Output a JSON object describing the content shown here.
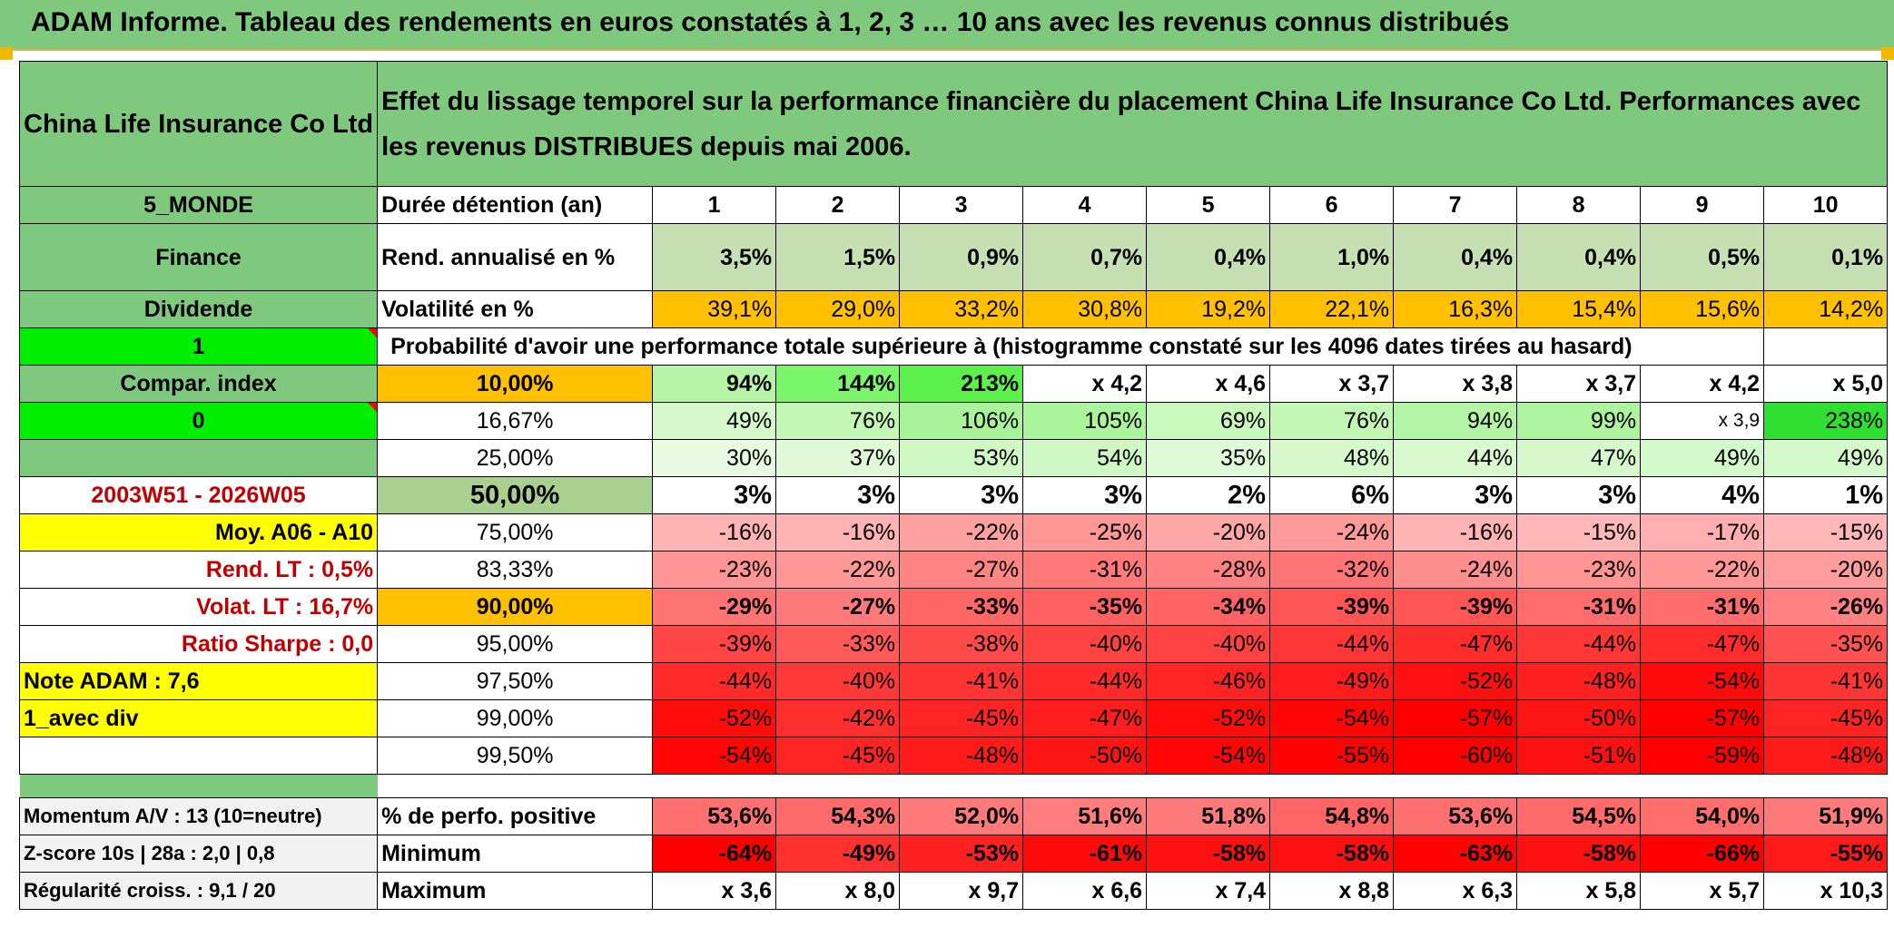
{
  "banner": "ADAM Informe. Tableau des rendements en euros constatés à 1, 2, 3 … 10 ans avec les revenus connus distribués",
  "header": {
    "fund": "China Life Insurance Co Ltd",
    "description": "Effet du lissage temporel sur la performance financière du placement China Life Insurance Co Ltd. Performances avec les revenus DISTRIBUES depuis mai 2006."
  },
  "left": {
    "zone": "5_MONDE",
    "sector": "Finance",
    "type": "Dividende",
    "flag1": "1",
    "compar": "Compar. index",
    "flag0": "0",
    "period": "2003W51 - 2026W05",
    "moy": "Moy. A06 - A10",
    "rend_lt": "Rend. LT :   0,5%",
    "volat_lt": "Volat. LT :   16,7%",
    "sharpe": "Ratio Sharpe :    0,0",
    "note": "Note ADAM : 7,6",
    "avec_div": "1_avec div",
    "momentum": "Momentum A/V : 13 (10=neutre)",
    "zscore": "Z-score 10s | 28a : 2,0 | 0,8",
    "regularite": "Régularité croiss. : 9,1 / 20"
  },
  "labels": {
    "duree": "Durée détention (an)",
    "rend": "Rend. annualisé en %",
    "volat": "Volatilité en %",
    "proba": "Probabilité d'avoir une performance totale supérieure à (histogramme constaté sur les 4096 dates tirées au hasard)",
    "perfo_pos": "% de perfo. positive",
    "minimum": "Minimum",
    "maximum": "Maximum"
  },
  "years": [
    "1",
    "2",
    "3",
    "4",
    "5",
    "6",
    "7",
    "8",
    "9",
    "10"
  ],
  "rend": [
    "3,5%",
    "1,5%",
    "0,9%",
    "0,7%",
    "0,4%",
    "1,0%",
    "0,4%",
    "0,4%",
    "0,5%",
    "0,1%"
  ],
  "volat": [
    "39,1%",
    "29,0%",
    "33,2%",
    "30,8%",
    "19,2%",
    "22,1%",
    "16,3%",
    "15,4%",
    "15,6%",
    "14,2%"
  ],
  "quantiles": [
    {
      "q": "10,00%",
      "v": [
        "94%",
        "144%",
        "213%",
        "x 4,2",
        "x 4,6",
        "x 3,7",
        "x 3,8",
        "x 3,7",
        "x 4,2",
        "x 5,0"
      ]
    },
    {
      "q": "16,67%",
      "v": [
        "49%",
        "76%",
        "106%",
        "105%",
        "69%",
        "76%",
        "94%",
        "99%",
        "x 3,9",
        "238%"
      ]
    },
    {
      "q": "25,00%",
      "v": [
        "30%",
        "37%",
        "53%",
        "54%",
        "35%",
        "48%",
        "44%",
        "47%",
        "49%",
        "49%"
      ]
    },
    {
      "q": "50,00%",
      "v": [
        "3%",
        "3%",
        "3%",
        "3%",
        "2%",
        "6%",
        "3%",
        "3%",
        "4%",
        "1%"
      ]
    },
    {
      "q": "75,00%",
      "v": [
        "-16%",
        "-16%",
        "-22%",
        "-25%",
        "-20%",
        "-24%",
        "-16%",
        "-15%",
        "-17%",
        "-15%"
      ]
    },
    {
      "q": "83,33%",
      "v": [
        "-23%",
        "-22%",
        "-27%",
        "-31%",
        "-28%",
        "-32%",
        "-24%",
        "-23%",
        "-22%",
        "-20%"
      ]
    },
    {
      "q": "90,00%",
      "v": [
        "-29%",
        "-27%",
        "-33%",
        "-35%",
        "-34%",
        "-39%",
        "-39%",
        "-31%",
        "-31%",
        "-26%"
      ]
    },
    {
      "q": "95,00%",
      "v": [
        "-39%",
        "-33%",
        "-38%",
        "-40%",
        "-40%",
        "-44%",
        "-47%",
        "-44%",
        "-47%",
        "-35%"
      ]
    },
    {
      "q": "97,50%",
      "v": [
        "-44%",
        "-40%",
        "-41%",
        "-44%",
        "-46%",
        "-49%",
        "-52%",
        "-48%",
        "-54%",
        "-41%"
      ]
    },
    {
      "q": "99,00%",
      "v": [
        "-52%",
        "-42%",
        "-45%",
        "-47%",
        "-52%",
        "-54%",
        "-57%",
        "-50%",
        "-57%",
        "-45%"
      ]
    },
    {
      "q": "99,50%",
      "v": [
        "-54%",
        "-45%",
        "-48%",
        "-50%",
        "-54%",
        "-55%",
        "-60%",
        "-51%",
        "-59%",
        "-48%"
      ]
    }
  ],
  "perfo_pos": [
    "53,6%",
    "54,3%",
    "52,0%",
    "51,6%",
    "51,8%",
    "54,8%",
    "53,6%",
    "54,5%",
    "54,0%",
    "51,9%"
  ],
  "minimum": [
    "-64%",
    "-49%",
    "-53%",
    "-61%",
    "-58%",
    "-58%",
    "-63%",
    "-58%",
    "-66%",
    "-55%"
  ],
  "maximum": [
    "x 3,6",
    "x 8,0",
    "x 9,7",
    "x 6,6",
    "x 7,4",
    "x 8,8",
    "x 6,3",
    "x 5,8",
    "x 5,7",
    "x 10,3"
  ],
  "colors": {
    "row_bg": [
      [
        "#b6f5a7",
        "#7bf56a",
        "#5cf04a",
        "#ffffff",
        "#ffffff",
        "#ffffff",
        "#ffffff",
        "#ffffff",
        "#ffffff",
        "#ffffff"
      ],
      [
        "#d6f9cc",
        "#c3f7b6",
        "#a9f39a",
        "#aaf49b",
        "#c9f8bd",
        "#c3f7b6",
        "#b3f5a5",
        "#aef4a0",
        "#ffffff",
        "#30e030"
      ],
      [
        "#e6fbdf",
        "#e0fad8",
        "#d0f8c5",
        "#cff8c4",
        "#defad6",
        "#d5f9cb",
        "#d9f9cf",
        "#d6f9cc",
        "#d4f9ca",
        "#d4f9ca"
      ],
      [
        "#ffffff",
        "#ffffff",
        "#ffffff",
        "#ffffff",
        "#ffffff",
        "#ffffff",
        "#ffffff",
        "#ffffff",
        "#ffffff",
        "#ffffff"
      ],
      [
        "#ffb3b3",
        "#ffb3b3",
        "#ffa0a0",
        "#ff9797",
        "#ffa6a6",
        "#ff9a9a",
        "#ffb3b3",
        "#ffb7b7",
        "#ffafaf",
        "#ffb7b7"
      ],
      [
        "#ff9494",
        "#ff9797",
        "#ff8585",
        "#ff7979",
        "#ff8282",
        "#ff7575",
        "#ff8f8f",
        "#ff9494",
        "#ff9797",
        "#ff9d9d"
      ],
      [
        "#ff7373",
        "#ff7a7a",
        "#ff6666",
        "#ff6060",
        "#ff6363",
        "#ff5555",
        "#ff5555",
        "#ff6c6c",
        "#ff6c6c",
        "#ff8080"
      ],
      [
        "#ff4545",
        "#ff5a5a",
        "#ff4a4a",
        "#ff4343",
        "#ff4343",
        "#ff3636",
        "#ff2c2c",
        "#ff3636",
        "#ff2c2c",
        "#ff5353"
      ],
      [
        "#ff2a2a",
        "#ff3838",
        "#ff3434",
        "#ff2a2a",
        "#ff2424",
        "#ff1c1c",
        "#ff1010",
        "#ff2020",
        "#ff0a0a",
        "#ff3434"
      ],
      [
        "#ff0c0c",
        "#ff2e2e",
        "#ff2424",
        "#ff1c1c",
        "#ff0c0c",
        "#ff0505",
        "#ff0000",
        "#ff1414",
        "#ff0000",
        "#ff2424"
      ],
      [
        "#ff0505",
        "#ff2424",
        "#ff1a1a",
        "#ff1414",
        "#ff0505",
        "#ff0202",
        "#ff0000",
        "#ff1010",
        "#ff0000",
        "#ff1a1a"
      ]
    ],
    "perfo_bg": [
      "#ff7070",
      "#ff6a6a",
      "#ff7a7a",
      "#ff7d7d",
      "#ff7b7b",
      "#ff6565",
      "#ff7070",
      "#ff6a6a",
      "#ff6d6d",
      "#ff7b7b"
    ],
    "min_bg": [
      "#ff0000",
      "#ff3030",
      "#ff2020",
      "#ff0a0a",
      "#ff1010",
      "#ff1010",
      "#ff0202",
      "#ff1010",
      "#ff0000",
      "#ff1a1a"
    ]
  }
}
